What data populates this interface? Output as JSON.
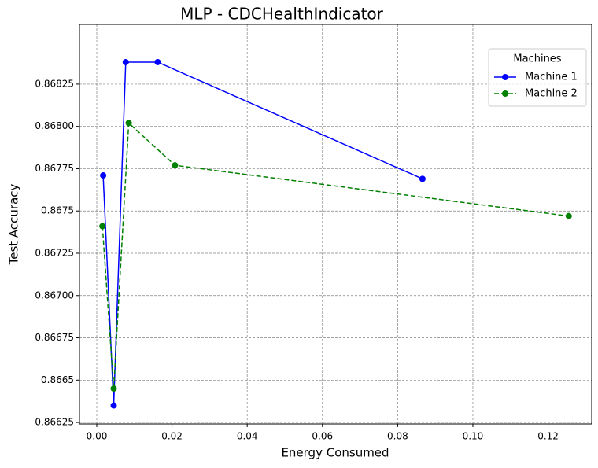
{
  "chart_data": {
    "type": "line",
    "title": "MLP - CDCHealthIndicator",
    "x_label": "Energy Consumed",
    "y_label": "Test Accuracy",
    "legend_title": "Machines",
    "legend": "upper right",
    "grid": true,
    "xlim": [
      -0.0046,
      0.1316
    ],
    "ylim": [
      0.866241,
      0.868603
    ],
    "xticks": [
      {
        "value": 0,
        "label": "0.00"
      },
      {
        "value": 0.02,
        "label": "0.02"
      },
      {
        "value": 0.04,
        "label": "0.04"
      },
      {
        "value": 0.06,
        "label": "0.06"
      },
      {
        "value": 0.08,
        "label": "0.08"
      },
      {
        "value": 0.1,
        "label": "0.10"
      },
      {
        "value": 0.12,
        "label": "0.12"
      }
    ],
    "yticks": [
      0.86625,
      0.8665,
      0.86675,
      {
        "value": 0.867,
        "label": "0.86700"
      },
      0.86725,
      0.8675,
      0.86775,
      {
        "value": 0.868,
        "label": "0.86800"
      },
      0.86825
    ],
    "series": [
      {
        "name": "Machine 1",
        "color": "#0000ff",
        "linestyle": "solid",
        "x": [
          0.0017,
          0.0045,
          0.0077,
          0.0162,
          0.0866
        ],
        "values": [
          0.86771,
          0.86635,
          0.86838,
          0.86838,
          0.86769
        ]
      },
      {
        "name": "Machine 2",
        "color": "#008000",
        "linestyle": "dashed",
        "x": [
          0.0015,
          0.0045,
          0.0085,
          0.0208,
          0.1255
        ],
        "values": [
          0.86741,
          0.86645,
          0.86802,
          0.86777,
          0.86747
        ]
      }
    ]
  }
}
